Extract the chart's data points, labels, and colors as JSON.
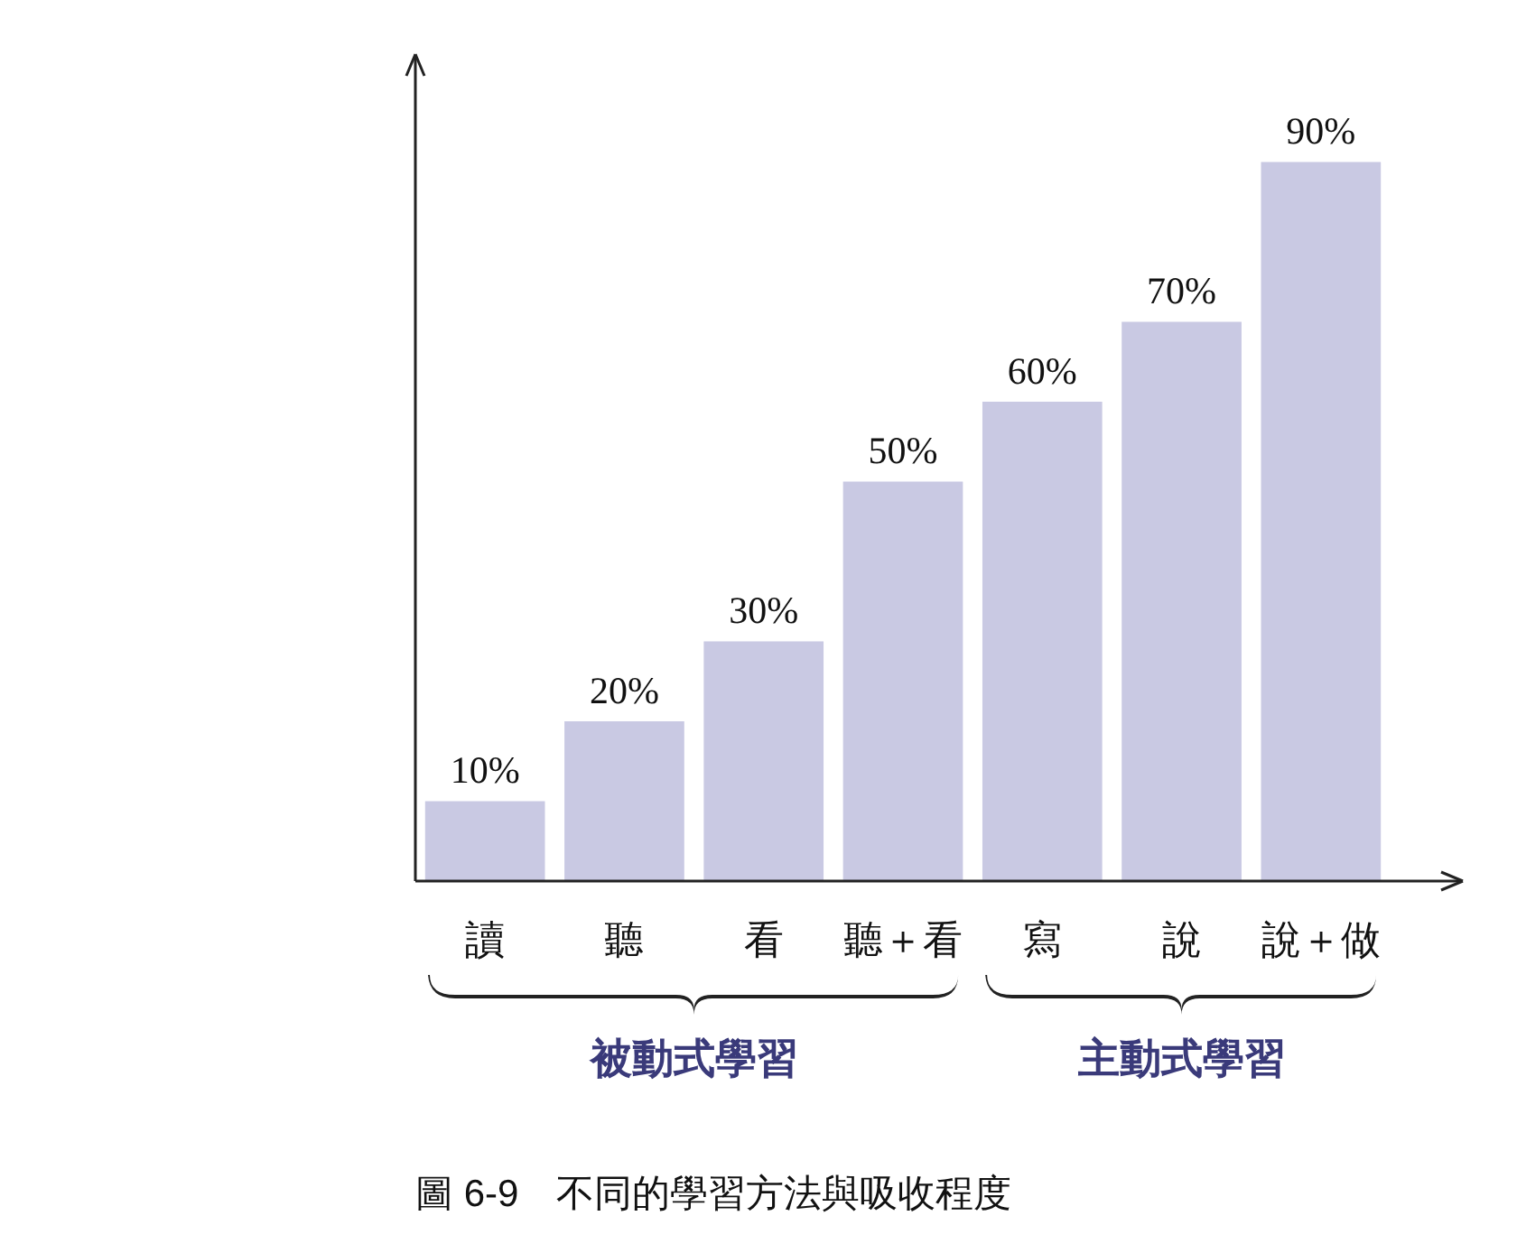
{
  "chart_data": {
    "type": "bar",
    "categories": [
      "讀",
      "聽",
      "看",
      "聽＋看",
      "寫",
      "說",
      "說＋做"
    ],
    "values": [
      10,
      20,
      30,
      50,
      60,
      70,
      90
    ],
    "value_labels": [
      "10%",
      "20%",
      "30%",
      "50%",
      "60%",
      "70%",
      "90%"
    ],
    "color": "#c9c9e3",
    "annotations": [
      "被動式學習",
      "主動式學習",
      "圖 6-9　不同的學習方法與吸收程度"
    ]
  }
}
